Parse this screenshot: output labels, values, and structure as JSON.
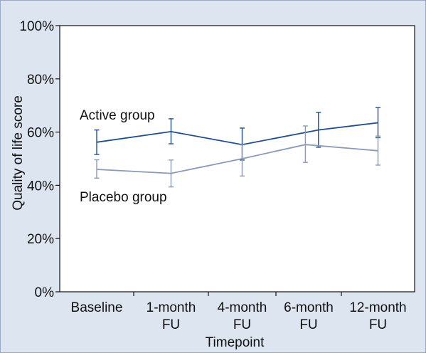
{
  "chart_data": {
    "type": "line",
    "xlabel": "Timepoint",
    "ylabel": "Quality of life score",
    "categories": [
      [
        "Baseline"
      ],
      [
        "1-month",
        "FU"
      ],
      [
        "4-month",
        "FU"
      ],
      [
        "6-month",
        "FU"
      ],
      [
        "12-month",
        "FU"
      ]
    ],
    "ylim": [
      0,
      100
    ],
    "yticks": [
      0,
      20,
      40,
      60,
      80,
      100
    ],
    "ytick_labels": [
      "0%",
      "20%",
      "40%",
      "60%",
      "80%",
      "100%"
    ],
    "grid": false,
    "series": [
      {
        "name": "Active group",
        "color": "#1f4e8a",
        "x": [
          0.5,
          1.5,
          2.5,
          3.65,
          4.5
        ],
        "values": [
          56.2,
          60.2,
          55.3,
          60.8,
          63.5
        ],
        "err_low": [
          51.6,
          55.6,
          49.5,
          54.3,
          57.9
        ],
        "err_high": [
          60.8,
          65.0,
          61.5,
          67.4,
          69.2
        ]
      },
      {
        "name": "Placebo group",
        "color": "#8a9ab8",
        "x": [
          0.5,
          1.5,
          2.5,
          3.45,
          4.5
        ],
        "values": [
          46.0,
          44.5,
          50.0,
          55.3,
          53.0
        ],
        "err_low": [
          42.7,
          39.4,
          43.5,
          48.6,
          47.6
        ],
        "err_high": [
          49.6,
          49.5,
          55.2,
          62.3,
          58.5
        ]
      }
    ],
    "annotations": [
      "Active group",
      "Placebo group"
    ]
  }
}
